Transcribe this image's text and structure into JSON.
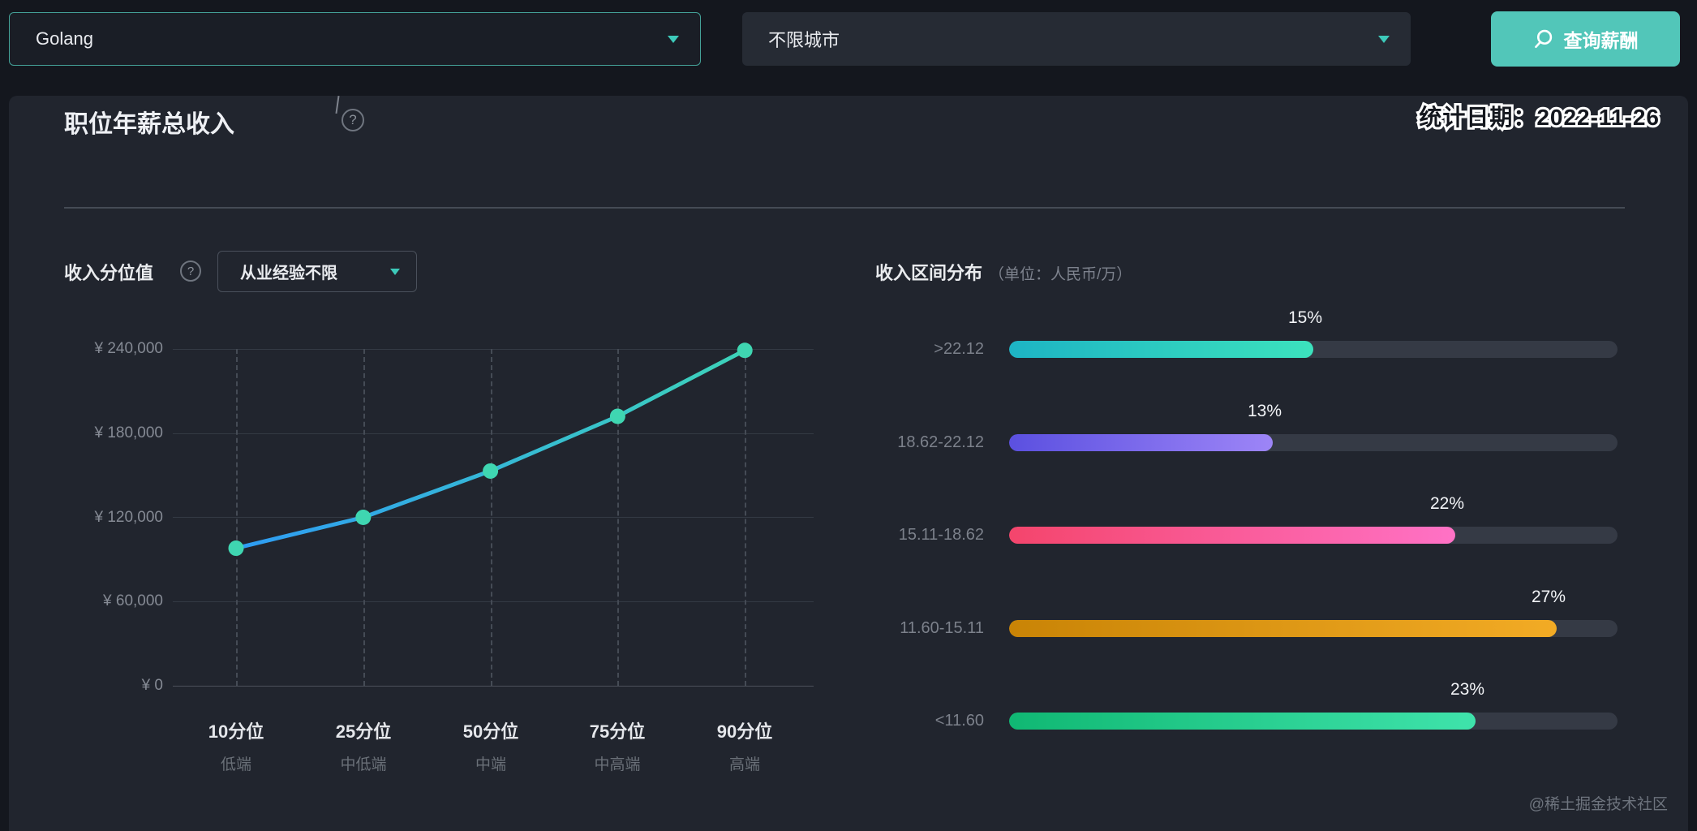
{
  "topbar": {
    "position_select": {
      "value": "Golang"
    },
    "city_select": {
      "value": "不限城市"
    },
    "search_button": {
      "label": "查询薪酬"
    }
  },
  "stamp": {
    "text": "统计日期：2022-11-26"
  },
  "section": {
    "title": "职位年薪总收入",
    "help_icon": "?"
  },
  "percentile": {
    "header": "收入分位值",
    "help_icon": "?",
    "experience_select": {
      "value": "从业经验不限"
    }
  },
  "distribution": {
    "header": "收入区间分布",
    "unit": "（单位：人民币/万）"
  },
  "watermark": {
    "text": "@稀土掘金技术社区"
  },
  "colors": {
    "accent_teal": "#52c6b9",
    "panel_bg": "#21252e",
    "topbar_bg": "#14171e"
  },
  "chart_data": [
    {
      "type": "line",
      "title": "收入分位值",
      "x": [
        "10分位",
        "25分位",
        "50分位",
        "75分位",
        "90分位"
      ],
      "x_sublabels": [
        "低端",
        "中低端",
        "中端",
        "中高端",
        "高端"
      ],
      "values": [
        98000,
        120000,
        153000,
        192000,
        239000
      ],
      "yticks_top_to_bottom": [
        "¥ 240,000",
        "¥ 180,000",
        "¥ 120,000",
        "¥ 60,000",
        "¥ 0"
      ],
      "ylim": [
        0,
        240000
      ],
      "grid": true,
      "line_gradient": [
        "#2e9cf4",
        "#3dd3b9"
      ],
      "marker_color": "#3fd6b1"
    },
    {
      "type": "bar",
      "orientation": "horizontal",
      "title": "收入区间分布",
      "unit": "人民币/万",
      "categories": [
        ">22.12",
        "18.62-22.12",
        "15.11-18.62",
        "11.60-15.11",
        "<11.60"
      ],
      "values": [
        15,
        13,
        22,
        27,
        23
      ],
      "value_labels": [
        "15%",
        "13%",
        "22%",
        "27%",
        "23%"
      ],
      "xlim": [
        0,
        30
      ],
      "track_color": "#353a45",
      "bar_gradients": [
        [
          "#1db4c4",
          "#3ce2bd"
        ],
        [
          "#5b50e0",
          "#9d85f7"
        ],
        [
          "#f4456c",
          "#ff72c6"
        ],
        [
          "#c98406",
          "#f2ab25"
        ],
        [
          "#10b873",
          "#3fe3ab"
        ]
      ]
    }
  ]
}
